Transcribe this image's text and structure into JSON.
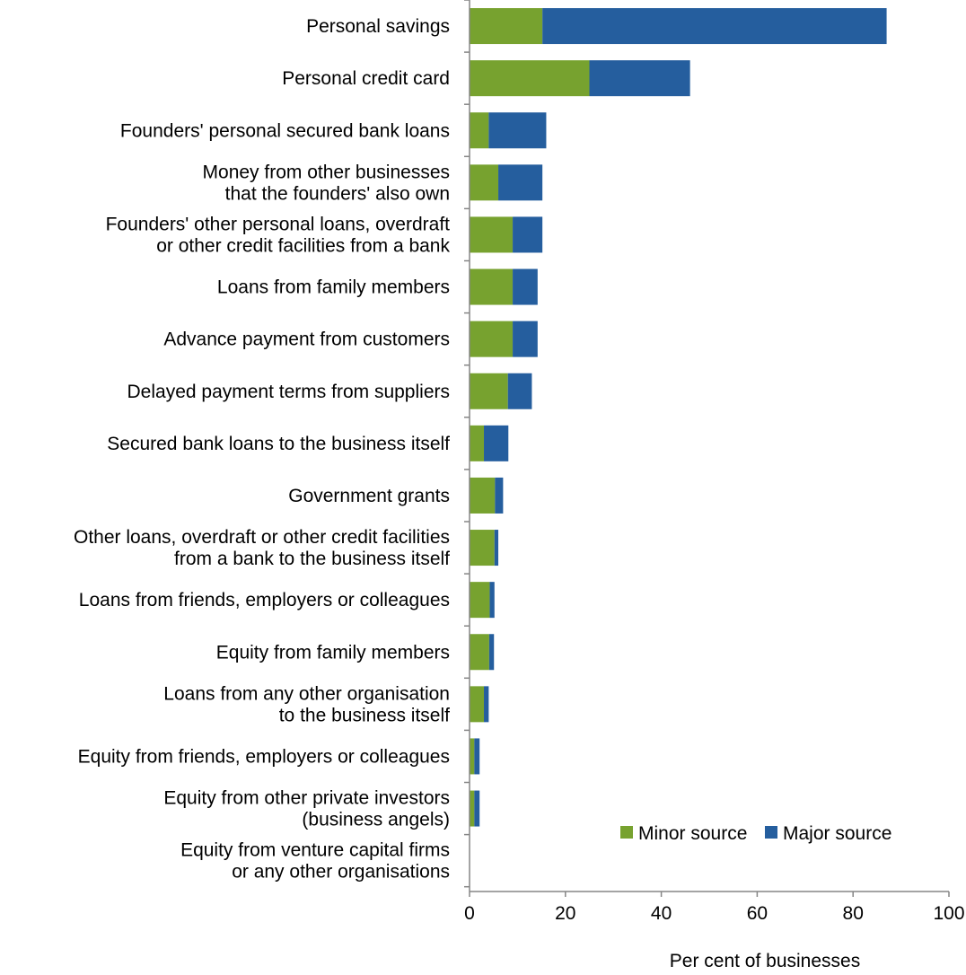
{
  "chart_data": {
    "type": "bar",
    "orientation": "horizontal",
    "stacked": true,
    "categories": [
      [
        "Personal savings"
      ],
      [
        "Personal credit card"
      ],
      [
        "Founders' personal secured bank loans"
      ],
      [
        "Money from other businesses",
        "that the founders' also own"
      ],
      [
        "Founders' other personal loans, overdraft",
        "or other credit facilities from a bank"
      ],
      [
        "Loans from family members"
      ],
      [
        "Advance payment from customers"
      ],
      [
        "Delayed payment terms from suppliers"
      ],
      [
        "Secured bank loans to the business itself"
      ],
      [
        "Government grants"
      ],
      [
        "Other loans, overdraft or other credit facilities",
        "from a bank to the business itself"
      ],
      [
        "Loans from friends, employers or colleagues"
      ],
      [
        "Equity from family members"
      ],
      [
        "Loans from any other organisation",
        "to the business itself"
      ],
      [
        "Equity from friends, employers or colleagues"
      ],
      [
        "Equity from other private investors",
        "(business angels)"
      ],
      [
        "Equity from venture capital firms",
        "or any other organisations"
      ]
    ],
    "series": [
      {
        "name": "Minor source",
        "color": "#77a22f",
        "values": [
          15.2,
          25,
          4,
          6,
          9,
          9,
          9,
          8,
          3,
          5.3,
          5.2,
          4.2,
          4.1,
          3,
          1,
          1,
          0
        ]
      },
      {
        "name": "Major source",
        "color": "#255e9e",
        "values": [
          71.8,
          21,
          12,
          9.2,
          6.2,
          5.2,
          5.2,
          5,
          5.1,
          1.7,
          0.8,
          1,
          1,
          1,
          1.1,
          1.1,
          0
        ]
      }
    ],
    "xlabel": "Per cent of businesses",
    "ylabel": "",
    "xlim": [
      0,
      100
    ],
    "xticks": [
      "0",
      "20",
      "40",
      "60",
      "80",
      "100"
    ],
    "grid": false,
    "legend_position": "bottom-right"
  }
}
